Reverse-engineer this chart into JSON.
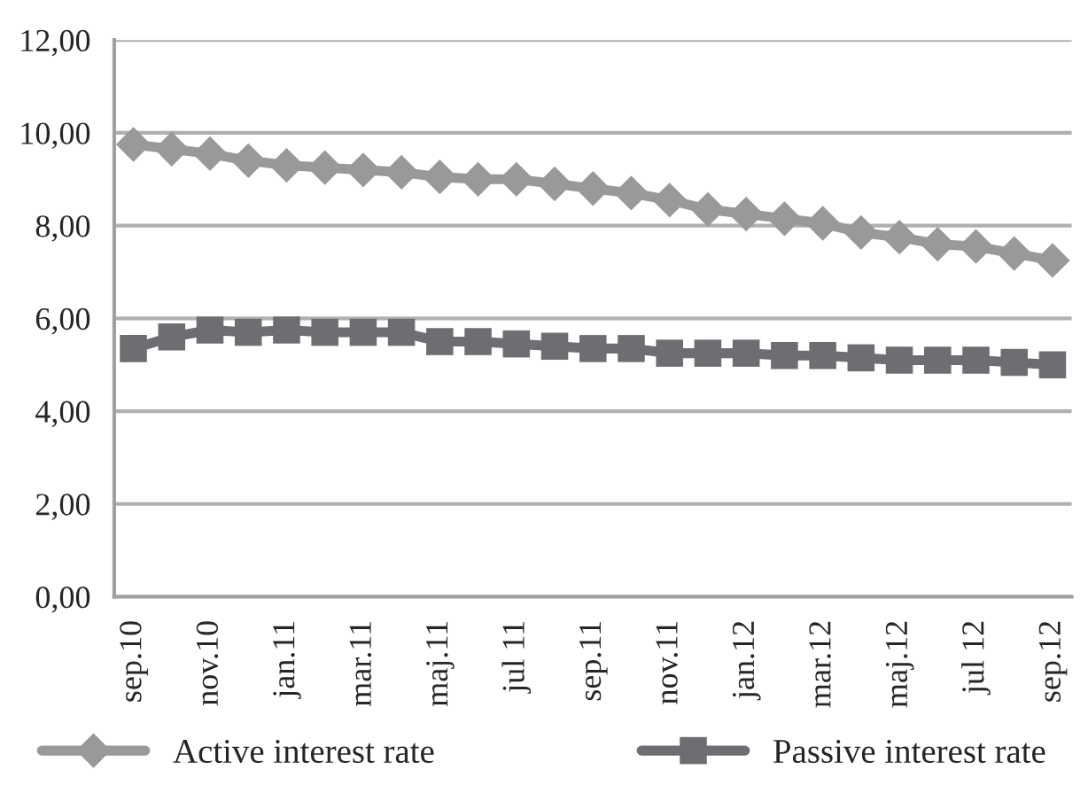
{
  "chart_data": {
    "type": "line",
    "categories": [
      "sep.10",
      null,
      "nov.10",
      null,
      "jan.11",
      null,
      "mar.11",
      null,
      "maj.11",
      null,
      "jul 11",
      null,
      "sep.11",
      null,
      "nov.11",
      null,
      "jan.12",
      null,
      "mar.12",
      null,
      "maj.12",
      null,
      "jul 12",
      null,
      "sep.12"
    ],
    "series": [
      {
        "name": "Active interest rate",
        "color": "#999999",
        "marker": "diamond",
        "values": [
          9.75,
          9.65,
          9.55,
          9.4,
          9.3,
          9.25,
          9.2,
          9.15,
          9.05,
          9.0,
          9.0,
          8.9,
          8.8,
          8.7,
          8.55,
          8.35,
          8.25,
          8.15,
          8.05,
          7.85,
          7.75,
          7.6,
          7.55,
          7.4,
          7.25
        ]
      },
      {
        "name": "Passive interest rate",
        "color": "#6d6e71",
        "marker": "square",
        "values": [
          5.35,
          5.6,
          5.75,
          5.7,
          5.75,
          5.7,
          5.7,
          5.7,
          5.5,
          5.5,
          5.45,
          5.4,
          5.35,
          5.35,
          5.25,
          5.25,
          5.25,
          5.2,
          5.2,
          5.15,
          5.1,
          5.1,
          5.1,
          5.05,
          5.0
        ]
      }
    ],
    "ylim": [
      0,
      12
    ],
    "yticks": [
      {
        "value": 0,
        "label": "0,00"
      },
      {
        "value": 2,
        "label": "2,00"
      },
      {
        "value": 4,
        "label": "4,00"
      },
      {
        "value": 6,
        "label": "6,00"
      },
      {
        "value": 8,
        "label": "8,00"
      },
      {
        "value": 10,
        "label": "10,00"
      },
      {
        "value": 12,
        "label": "12,00"
      }
    ],
    "grid": "y",
    "legend": "bottom",
    "line_style": "solid"
  }
}
